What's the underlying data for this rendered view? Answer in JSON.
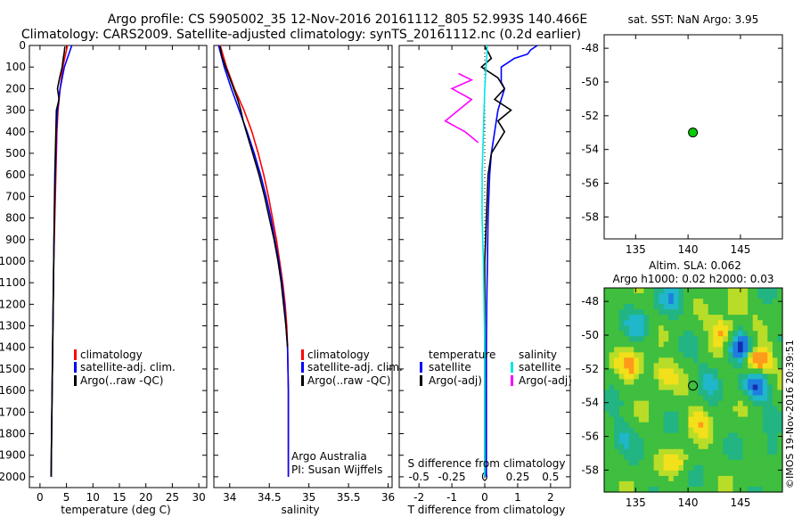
{
  "header": {
    "line1": "Argo profile: CS 5905002_35 12-Nov-2016 20161112_805 52.993S 140.466E",
    "line2": "Climatology: CARS2009. Satellite-adjusted climatology: synTS_20161112.nc (0.2d earlier)"
  },
  "colors": {
    "climatology": "#ff0000",
    "satellite": "#0000ff",
    "argo": "#000000",
    "sat_salinity": "#00e5e5",
    "argo_salinity": "#ff00ff",
    "marker": "#00cc00"
  },
  "chart_data": [
    {
      "id": "temperature",
      "type": "line",
      "xlabel": "temperature (deg C)",
      "xticks": [
        0,
        5,
        10,
        15,
        20,
        25,
        30
      ],
      "xlim": [
        -2,
        31.5
      ],
      "yticks": [
        0,
        100,
        200,
        300,
        400,
        500,
        600,
        700,
        800,
        900,
        1000,
        1100,
        1200,
        1300,
        1400,
        1500,
        1600,
        1700,
        1800,
        1900,
        2000
      ],
      "ylim": [
        2050,
        0
      ],
      "legend": [
        "climatology",
        "satellite-adj. clim.",
        "Argo(..raw -QC)"
      ],
      "series": [
        {
          "name": "climatology",
          "color": "#ff0000",
          "depth": [
            0,
            100,
            200,
            300,
            400,
            600,
            800,
            1000,
            1200,
            1400,
            1600,
            1800,
            2000
          ],
          "values": [
            5.2,
            4.3,
            3.8,
            3.4,
            3.2,
            3.0,
            2.8,
            2.6,
            2.5,
            2.4,
            2.3,
            2.2,
            2.1
          ]
        },
        {
          "name": "satellite-adj. clim.",
          "color": "#0000ff",
          "depth": [
            0,
            30,
            100,
            200,
            300,
            400,
            600,
            800,
            1000,
            1200,
            1400,
            1600,
            1800,
            2000
          ],
          "values": [
            6.0,
            5.6,
            4.6,
            3.8,
            3.3,
            3.1,
            2.9,
            2.7,
            2.6,
            2.5,
            2.4,
            2.3,
            2.2,
            2.1
          ]
        },
        {
          "name": "Argo(..raw -QC)",
          "color": "#000000",
          "depth": [
            5,
            30,
            60,
            100,
            150,
            200,
            250,
            300,
            400,
            500,
            600,
            800,
            1000,
            1200,
            1400,
            1600,
            1800,
            2000
          ],
          "values": [
            4.7,
            4.6,
            4.4,
            4.2,
            3.7,
            3.3,
            3.6,
            3.1,
            3.0,
            2.9,
            2.8,
            2.7,
            2.6,
            2.5,
            2.4,
            2.3,
            2.2,
            2.1
          ]
        }
      ]
    },
    {
      "id": "salinity",
      "type": "line",
      "xlabel": "salinity",
      "xticks": [
        34,
        34.5,
        35,
        35.5,
        36
      ],
      "xtick_labels": [
        "34",
        "34.5",
        "35",
        "35.5",
        "36"
      ],
      "xlim": [
        33.8,
        36.05
      ],
      "ylim": [
        2050,
        0
      ],
      "legend": [
        "climatology",
        "satellite-adj. clim.",
        "Argo(..raw -QC)"
      ],
      "annotation": [
        "Argo Australia",
        "PI: Susan Wijffels"
      ],
      "series": [
        {
          "name": "climatology",
          "color": "#ff0000",
          "depth": [
            0,
            100,
            200,
            300,
            400,
            500,
            600,
            700,
            800,
            900,
            1000,
            1100,
            1200,
            1300,
            1400,
            1600,
            1800,
            2000
          ],
          "values": [
            33.88,
            33.96,
            34.06,
            34.18,
            34.28,
            34.36,
            34.43,
            34.49,
            34.54,
            34.59,
            34.63,
            34.67,
            34.7,
            34.72,
            34.73,
            34.74,
            34.74,
            34.74
          ]
        },
        {
          "name": "satellite-adj. clim.",
          "color": "#0000ff",
          "depth": [
            0,
            100,
            200,
            300,
            400,
            500,
            600,
            700,
            800,
            900,
            1000,
            1100,
            1200,
            1300,
            1400,
            1600,
            1800,
            2000
          ],
          "values": [
            33.86,
            33.93,
            34.02,
            34.12,
            34.22,
            34.31,
            34.39,
            34.46,
            34.52,
            34.57,
            34.62,
            34.66,
            34.69,
            34.71,
            34.73,
            34.74,
            34.74,
            34.74
          ]
        },
        {
          "name": "Argo(..raw -QC)",
          "color": "#000000",
          "depth": [
            5,
            50,
            100,
            150,
            200,
            250,
            300,
            350,
            400,
            500,
            600,
            700,
            800,
            900,
            1000,
            1100,
            1200,
            1300,
            1400
          ],
          "values": [
            33.88,
            33.9,
            33.95,
            34.0,
            34.05,
            34.1,
            34.14,
            34.17,
            34.21,
            34.29,
            34.37,
            34.44,
            34.5,
            34.56,
            34.61,
            34.65,
            34.68,
            34.71,
            34.73
          ]
        }
      ]
    },
    {
      "id": "difference",
      "type": "line",
      "xlabel": "T difference from climatology",
      "xticks": [
        -2,
        -1,
        0,
        1,
        2
      ],
      "xlim": [
        -2.6,
        2.6
      ],
      "top_label": "S difference from climatology",
      "top_ticks": [
        "-0.5",
        "-0.25",
        "0",
        "0.25",
        "0.5"
      ],
      "legend_headers": [
        "temperature",
        "salinity"
      ],
      "legend": [
        "satellite",
        "Argo(-adj)",
        "satellite",
        "Argo(-adj)"
      ],
      "series": [
        {
          "name": "temperature satellite",
          "color": "#0000ff",
          "depth": [
            0,
            20,
            40,
            60,
            80,
            100,
            130,
            170,
            200,
            250,
            300,
            400,
            500,
            600,
            800,
            1000,
            1200,
            1400,
            1600,
            1800,
            2000
          ],
          "values": [
            1.6,
            1.4,
            1.3,
            0.9,
            0.7,
            0.5,
            0.5,
            0.5,
            0.6,
            0.5,
            0.4,
            0.3,
            0.2,
            0.15,
            0.1,
            0.08,
            0.06,
            0.05,
            0.05,
            0.05,
            0.05
          ]
        },
        {
          "name": "temperature Argo(-adj)",
          "color": "#000000",
          "depth": [
            5,
            30,
            60,
            100,
            150,
            200,
            250,
            300,
            350,
            400,
            500,
            600,
            800,
            1000,
            1400,
            2000
          ],
          "values": [
            0.0,
            0.1,
            0.2,
            -0.1,
            0.4,
            0.6,
            0.3,
            0.8,
            0.4,
            0.6,
            0.2,
            0.1,
            0.05,
            0.0,
            0.0,
            0.0
          ]
        },
        {
          "name": "salinity satellite",
          "color": "#00e5e5",
          "depth": [
            0,
            100,
            200,
            400,
            600,
            800,
            1000,
            1400,
            2000
          ],
          "values": [
            0.02,
            0.01,
            0.0,
            -0.01,
            -0.02,
            -0.02,
            -0.01,
            0.0,
            0.0
          ]
        },
        {
          "name": "salinity Argo(-adj)",
          "color": "#ff00ff",
          "depth": [
            130,
            160,
            200,
            250,
            300,
            350,
            400,
            450
          ],
          "values": [
            -0.2,
            -0.1,
            -0.25,
            -0.1,
            -0.2,
            -0.3,
            -0.15,
            -0.05
          ]
        }
      ]
    },
    {
      "id": "location",
      "type": "scatter",
      "title": "sat. SST: NaN  Argo: 3.95",
      "xticks": [
        135,
        140,
        145
      ],
      "yticks": [
        -48,
        -50,
        -52,
        -54,
        -56,
        -58
      ],
      "xlim": [
        132,
        149
      ],
      "ylim": [
        -59.3,
        -47.2
      ],
      "points": [
        {
          "x": 140.466,
          "y": -52.993
        }
      ]
    },
    {
      "id": "altimetry",
      "type": "heatmap",
      "title_lines": [
        "Altim. SLA: 0.062",
        "Argo h1000: 0.02  h2000: 0.03"
      ],
      "xticks": [
        135,
        140,
        145
      ],
      "yticks": [
        -48,
        -50,
        -52,
        -54,
        -56,
        -58
      ],
      "xlim": [
        132,
        149
      ],
      "ylim": [
        -59.3,
        -47.2
      ],
      "points": [
        {
          "x": 140.466,
          "y": -52.993
        }
      ],
      "anomalies": [
        {
          "x": 146.5,
          "y": -51.5,
          "amp": 1.0
        },
        {
          "x": 145.0,
          "y": -50.7,
          "amp": -1.0
        },
        {
          "x": 146.5,
          "y": -53.0,
          "amp": -0.8
        },
        {
          "x": 143.3,
          "y": -49.8,
          "amp": 0.6
        },
        {
          "x": 134.7,
          "y": -51.8,
          "amp": 0.5
        },
        {
          "x": 137.5,
          "y": -52.3,
          "amp": 0.45
        },
        {
          "x": 141.0,
          "y": -55.0,
          "amp": 0.4
        },
        {
          "x": 135.5,
          "y": -49.5,
          "amp": -0.35
        },
        {
          "x": 138.5,
          "y": -48.0,
          "amp": -0.35
        },
        {
          "x": 142.0,
          "y": -52.5,
          "amp": -0.3
        },
        {
          "x": 139.0,
          "y": -57.5,
          "amp": 0.35
        },
        {
          "x": 133.5,
          "y": -56.0,
          "amp": -0.3
        },
        {
          "x": 147.5,
          "y": -57.0,
          "amp": -0.3
        },
        {
          "x": 144.5,
          "y": -48.3,
          "amp": 0.35
        }
      ]
    }
  ],
  "credit": "©IMOS 19-Nov-2016 20:39:51"
}
